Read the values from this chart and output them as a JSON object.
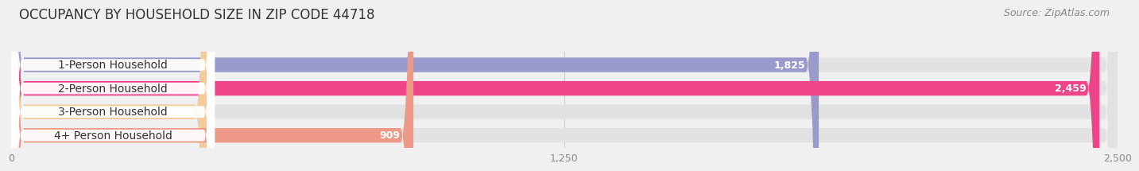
{
  "title": "OCCUPANCY BY HOUSEHOLD SIZE IN ZIP CODE 44718",
  "source": "Source: ZipAtlas.com",
  "categories": [
    "1-Person Household",
    "2-Person Household",
    "3-Person Household",
    "4+ Person Household"
  ],
  "values": [
    1825,
    2459,
    443,
    909
  ],
  "bar_colors": [
    "#9999cc",
    "#ee4488",
    "#f5cc99",
    "#ee9988"
  ],
  "xlim": [
    0,
    2500
  ],
  "xticks": [
    0,
    1250,
    2500
  ],
  "background_color": "#f0f0f0",
  "bar_bg_color": "#e2e2e2",
  "title_fontsize": 12,
  "source_fontsize": 9,
  "label_fontsize": 10,
  "value_fontsize": 9,
  "bar_height": 0.62
}
